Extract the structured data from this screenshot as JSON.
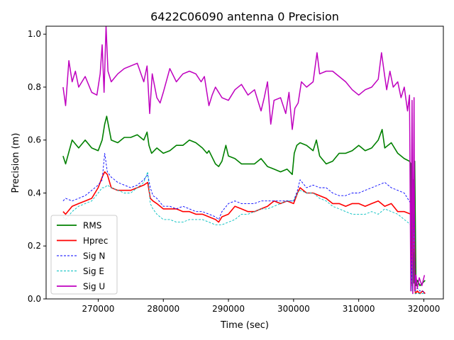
{
  "chart_data": {
    "type": "line",
    "title": "6422C06090 antenna 0 Precision",
    "xlabel": "Time (sec)",
    "ylabel": "Precision (m)",
    "xlim": [
      262000,
      323000
    ],
    "ylim": [
      0.0,
      1.03
    ],
    "xticks": [
      270000,
      280000,
      290000,
      300000,
      310000,
      320000
    ],
    "yticks": [
      0.0,
      0.2,
      0.4,
      0.6,
      0.8,
      1.0
    ],
    "legend_position": "lower-left",
    "series": [
      {
        "name": "RMS",
        "color": "#008000",
        "style": "solid",
        "x": [
          264600,
          265000,
          266000,
          267000,
          268000,
          269000,
          270000,
          270600,
          271000,
          271300,
          272000,
          273000,
          274000,
          275000,
          276000,
          277000,
          277500,
          277800,
          278200,
          279000,
          280000,
          281000,
          282000,
          283000,
          284000,
          285000,
          286000,
          286700,
          287000,
          288000,
          288500,
          289000,
          289600,
          290000,
          291000,
          292000,
          293000,
          294000,
          295000,
          296000,
          297000,
          298000,
          299000,
          299800,
          300100,
          300500,
          301000,
          302000,
          303000,
          303500,
          304000,
          305000,
          306000,
          307000,
          308000,
          309000,
          310000,
          311000,
          312000,
          313000,
          313600,
          314000,
          315000,
          316000,
          317000,
          317800,
          318000,
          318100,
          318300,
          318500,
          318600,
          318800,
          319000,
          319400,
          319800,
          320200
        ],
        "y": [
          0.54,
          0.51,
          0.6,
          0.57,
          0.6,
          0.57,
          0.56,
          0.6,
          0.66,
          0.69,
          0.6,
          0.59,
          0.61,
          0.61,
          0.62,
          0.6,
          0.63,
          0.58,
          0.55,
          0.57,
          0.55,
          0.56,
          0.58,
          0.58,
          0.6,
          0.59,
          0.57,
          0.55,
          0.56,
          0.51,
          0.5,
          0.52,
          0.58,
          0.54,
          0.53,
          0.51,
          0.51,
          0.51,
          0.53,
          0.5,
          0.49,
          0.48,
          0.49,
          0.47,
          0.55,
          0.58,
          0.59,
          0.58,
          0.56,
          0.6,
          0.54,
          0.51,
          0.52,
          0.55,
          0.55,
          0.56,
          0.58,
          0.56,
          0.57,
          0.6,
          0.64,
          0.57,
          0.59,
          0.55,
          0.53,
          0.52,
          0.51,
          0.1,
          0.45,
          0.06,
          0.52,
          0.05,
          0.07,
          0.05,
          0.06,
          0.07
        ]
      },
      {
        "name": "Hprec",
        "color": "#ff0000",
        "style": "solid",
        "x": [
          264600,
          265000,
          266000,
          267000,
          268000,
          269000,
          270000,
          270600,
          271000,
          271400,
          272000,
          273000,
          274000,
          275000,
          276000,
          277000,
          277600,
          278000,
          278400,
          279000,
          280000,
          281000,
          282000,
          283000,
          284000,
          285000,
          286000,
          287000,
          288000,
          288500,
          289000,
          290000,
          291000,
          292000,
          293000,
          294000,
          295000,
          296000,
          297000,
          298000,
          299000,
          300000,
          300600,
          301000,
          302000,
          303000,
          304000,
          305000,
          306000,
          307000,
          308000,
          309000,
          310000,
          311000,
          312000,
          313000,
          314000,
          315000,
          316000,
          317000,
          318000,
          318200,
          318500,
          318700,
          319000,
          319400,
          319800,
          320200
        ],
        "y": [
          0.33,
          0.32,
          0.35,
          0.36,
          0.37,
          0.38,
          0.42,
          0.46,
          0.48,
          0.47,
          0.42,
          0.41,
          0.41,
          0.41,
          0.42,
          0.43,
          0.44,
          0.38,
          0.37,
          0.36,
          0.34,
          0.34,
          0.34,
          0.33,
          0.33,
          0.32,
          0.32,
          0.31,
          0.3,
          0.29,
          0.31,
          0.32,
          0.35,
          0.34,
          0.33,
          0.33,
          0.34,
          0.35,
          0.37,
          0.36,
          0.37,
          0.36,
          0.4,
          0.42,
          0.4,
          0.4,
          0.39,
          0.38,
          0.36,
          0.36,
          0.35,
          0.36,
          0.36,
          0.35,
          0.36,
          0.37,
          0.35,
          0.36,
          0.33,
          0.33,
          0.32,
          0.05,
          0.3,
          0.02,
          0.03,
          0.02,
          0.03,
          0.02
        ]
      },
      {
        "name": "Sig N",
        "color": "#0000ff",
        "style": "dashed",
        "x": [
          264600,
          265000,
          266000,
          267000,
          268000,
          269000,
          270000,
          270600,
          271000,
          271400,
          272000,
          273000,
          274000,
          275000,
          276000,
          277000,
          277600,
          278000,
          278400,
          279000,
          280000,
          281000,
          282000,
          283000,
          284000,
          285000,
          286000,
          287000,
          288000,
          288500,
          289000,
          290000,
          291000,
          292000,
          293000,
          294000,
          295000,
          296000,
          297000,
          298000,
          299000,
          300000,
          300600,
          301000,
          302000,
          303000,
          304000,
          305000,
          306000,
          307000,
          308000,
          309000,
          310000,
          311000,
          312000,
          313000,
          314000,
          315000,
          316000,
          317000,
          318000,
          318200,
          318500,
          318700,
          319000,
          319400,
          319800,
          320200
        ],
        "y": [
          0.37,
          0.38,
          0.37,
          0.38,
          0.39,
          0.41,
          0.43,
          0.45,
          0.55,
          0.48,
          0.46,
          0.44,
          0.43,
          0.42,
          0.43,
          0.45,
          0.47,
          0.42,
          0.39,
          0.38,
          0.35,
          0.35,
          0.34,
          0.35,
          0.34,
          0.33,
          0.33,
          0.32,
          0.31,
          0.3,
          0.33,
          0.36,
          0.37,
          0.36,
          0.36,
          0.36,
          0.37,
          0.37,
          0.37,
          0.37,
          0.37,
          0.37,
          0.41,
          0.45,
          0.42,
          0.43,
          0.42,
          0.42,
          0.4,
          0.39,
          0.39,
          0.4,
          0.4,
          0.41,
          0.42,
          0.43,
          0.44,
          0.42,
          0.41,
          0.4,
          0.36,
          0.04,
          0.32,
          0.03,
          0.04,
          0.03,
          0.03,
          0.02
        ]
      },
      {
        "name": "Sig E",
        "color": "#00bfbf",
        "style": "dashed",
        "x": [
          264600,
          265000,
          266000,
          267000,
          268000,
          269000,
          270000,
          270600,
          271000,
          271400,
          272000,
          273000,
          274000,
          275000,
          276000,
          277000,
          277600,
          278000,
          278400,
          279000,
          280000,
          281000,
          282000,
          283000,
          284000,
          285000,
          286000,
          287000,
          288000,
          288500,
          289000,
          290000,
          291000,
          292000,
          293000,
          294000,
          295000,
          296000,
          297000,
          298000,
          299000,
          300000,
          300600,
          301000,
          302000,
          303000,
          304000,
          305000,
          306000,
          307000,
          308000,
          309000,
          310000,
          311000,
          312000,
          313000,
          314000,
          315000,
          316000,
          317000,
          318000,
          318200,
          318500,
          318700,
          319000,
          319400,
          319800,
          320200
        ],
        "y": [
          0.31,
          0.3,
          0.33,
          0.35,
          0.36,
          0.37,
          0.4,
          0.42,
          0.42,
          0.43,
          0.42,
          0.41,
          0.4,
          0.4,
          0.42,
          0.44,
          0.48,
          0.36,
          0.34,
          0.32,
          0.3,
          0.3,
          0.29,
          0.29,
          0.3,
          0.3,
          0.3,
          0.29,
          0.28,
          0.28,
          0.28,
          0.29,
          0.3,
          0.32,
          0.32,
          0.33,
          0.34,
          0.34,
          0.35,
          0.36,
          0.37,
          0.37,
          0.4,
          0.41,
          0.4,
          0.4,
          0.38,
          0.37,
          0.35,
          0.34,
          0.33,
          0.32,
          0.32,
          0.32,
          0.33,
          0.32,
          0.34,
          0.33,
          0.32,
          0.3,
          0.28,
          0.03,
          0.26,
          0.02,
          0.02,
          0.02,
          0.02,
          0.02
        ]
      },
      {
        "name": "Sig U",
        "color": "#bf00bf",
        "style": "solid",
        "x": [
          264600,
          265000,
          265500,
          266000,
          266500,
          267000,
          268000,
          269000,
          269800,
          270300,
          270600,
          270900,
          271200,
          271500,
          272000,
          273000,
          274000,
          275000,
          276000,
          277000,
          277500,
          277900,
          278300,
          279000,
          279500,
          280000,
          281000,
          282000,
          283000,
          284000,
          285000,
          285800,
          286300,
          287000,
          287500,
          288000,
          289000,
          290000,
          291000,
          292000,
          293000,
          294000,
          295000,
          295500,
          296000,
          296500,
          297000,
          298000,
          298800,
          299300,
          299800,
          300200,
          300700,
          301200,
          302000,
          303000,
          303600,
          304000,
          305000,
          306000,
          307000,
          308000,
          309000,
          310000,
          311000,
          312000,
          313000,
          313500,
          314000,
          314300,
          314800,
          315300,
          316000,
          316500,
          317000,
          317500,
          317800,
          318000,
          318200,
          318300,
          318500,
          318600,
          318800,
          319000,
          319300,
          319700,
          320100
        ],
        "y": [
          0.8,
          0.73,
          0.9,
          0.82,
          0.86,
          0.8,
          0.84,
          0.78,
          0.77,
          0.85,
          0.96,
          0.78,
          1.03,
          0.86,
          0.82,
          0.85,
          0.87,
          0.88,
          0.89,
          0.82,
          0.88,
          0.7,
          0.85,
          0.76,
          0.74,
          0.78,
          0.87,
          0.82,
          0.85,
          0.86,
          0.85,
          0.82,
          0.84,
          0.73,
          0.77,
          0.8,
          0.76,
          0.75,
          0.79,
          0.81,
          0.77,
          0.79,
          0.71,
          0.76,
          0.82,
          0.66,
          0.75,
          0.76,
          0.7,
          0.78,
          0.64,
          0.72,
          0.74,
          0.82,
          0.8,
          0.82,
          0.93,
          0.85,
          0.86,
          0.86,
          0.84,
          0.82,
          0.79,
          0.77,
          0.79,
          0.8,
          0.83,
          0.93,
          0.84,
          0.79,
          0.86,
          0.8,
          0.82,
          0.76,
          0.8,
          0.71,
          0.77,
          0.03,
          0.75,
          0.02,
          0.76,
          0.03,
          0.09,
          0.04,
          0.08,
          0.05,
          0.09
        ]
      }
    ]
  }
}
